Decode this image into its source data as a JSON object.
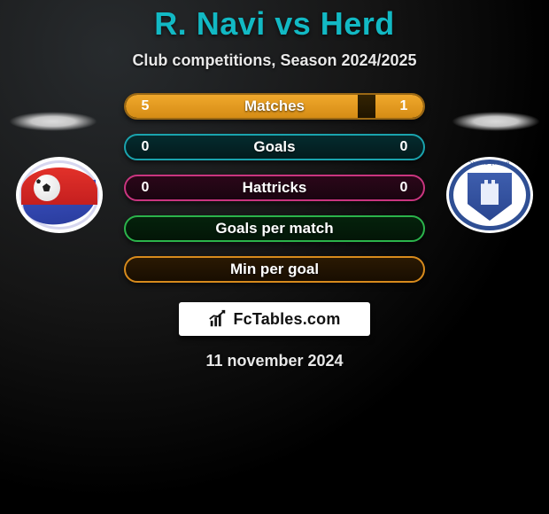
{
  "title": "R. Navi vs Herd",
  "subtitle": "Club competitions, Season 2024/2025",
  "date": "11 november 2024",
  "attribution_text": "FcTables.com",
  "accent_color": "#12b9c4",
  "players": {
    "left": {
      "name": "R. Navi"
    },
    "right": {
      "name": "Herd"
    }
  },
  "rows": [
    {
      "key": "matches",
      "label": "Matches",
      "left": "5",
      "right": "1",
      "left_pct": 78,
      "right_pct": 16,
      "css": "r-matches",
      "fill_color": "#e89a1f",
      "border_color": "#9a6815"
    },
    {
      "key": "goals",
      "label": "Goals",
      "left": "0",
      "right": "0",
      "left_pct": 0,
      "right_pct": 0,
      "css": "r-goals",
      "fill_color": "#1aa3ad",
      "border_color": "#1aa3ad"
    },
    {
      "key": "hattricks",
      "label": "Hattricks",
      "left": "0",
      "right": "0",
      "left_pct": 0,
      "right_pct": 0,
      "css": "r-hatt",
      "fill_color": "#c9357f",
      "border_color": "#c9357f"
    },
    {
      "key": "gpm",
      "label": "Goals per match",
      "left": "",
      "right": "",
      "left_pct": 0,
      "right_pct": 0,
      "css": "r-gpm",
      "fill_color": "#2bb34b",
      "border_color": "#2bb34b"
    },
    {
      "key": "mpg",
      "label": "Min per goal",
      "left": "",
      "right": "",
      "left_pct": 0,
      "right_pct": 0,
      "css": "r-mpg",
      "fill_color": "#d78a1c",
      "border_color": "#d78a1c"
    }
  ]
}
